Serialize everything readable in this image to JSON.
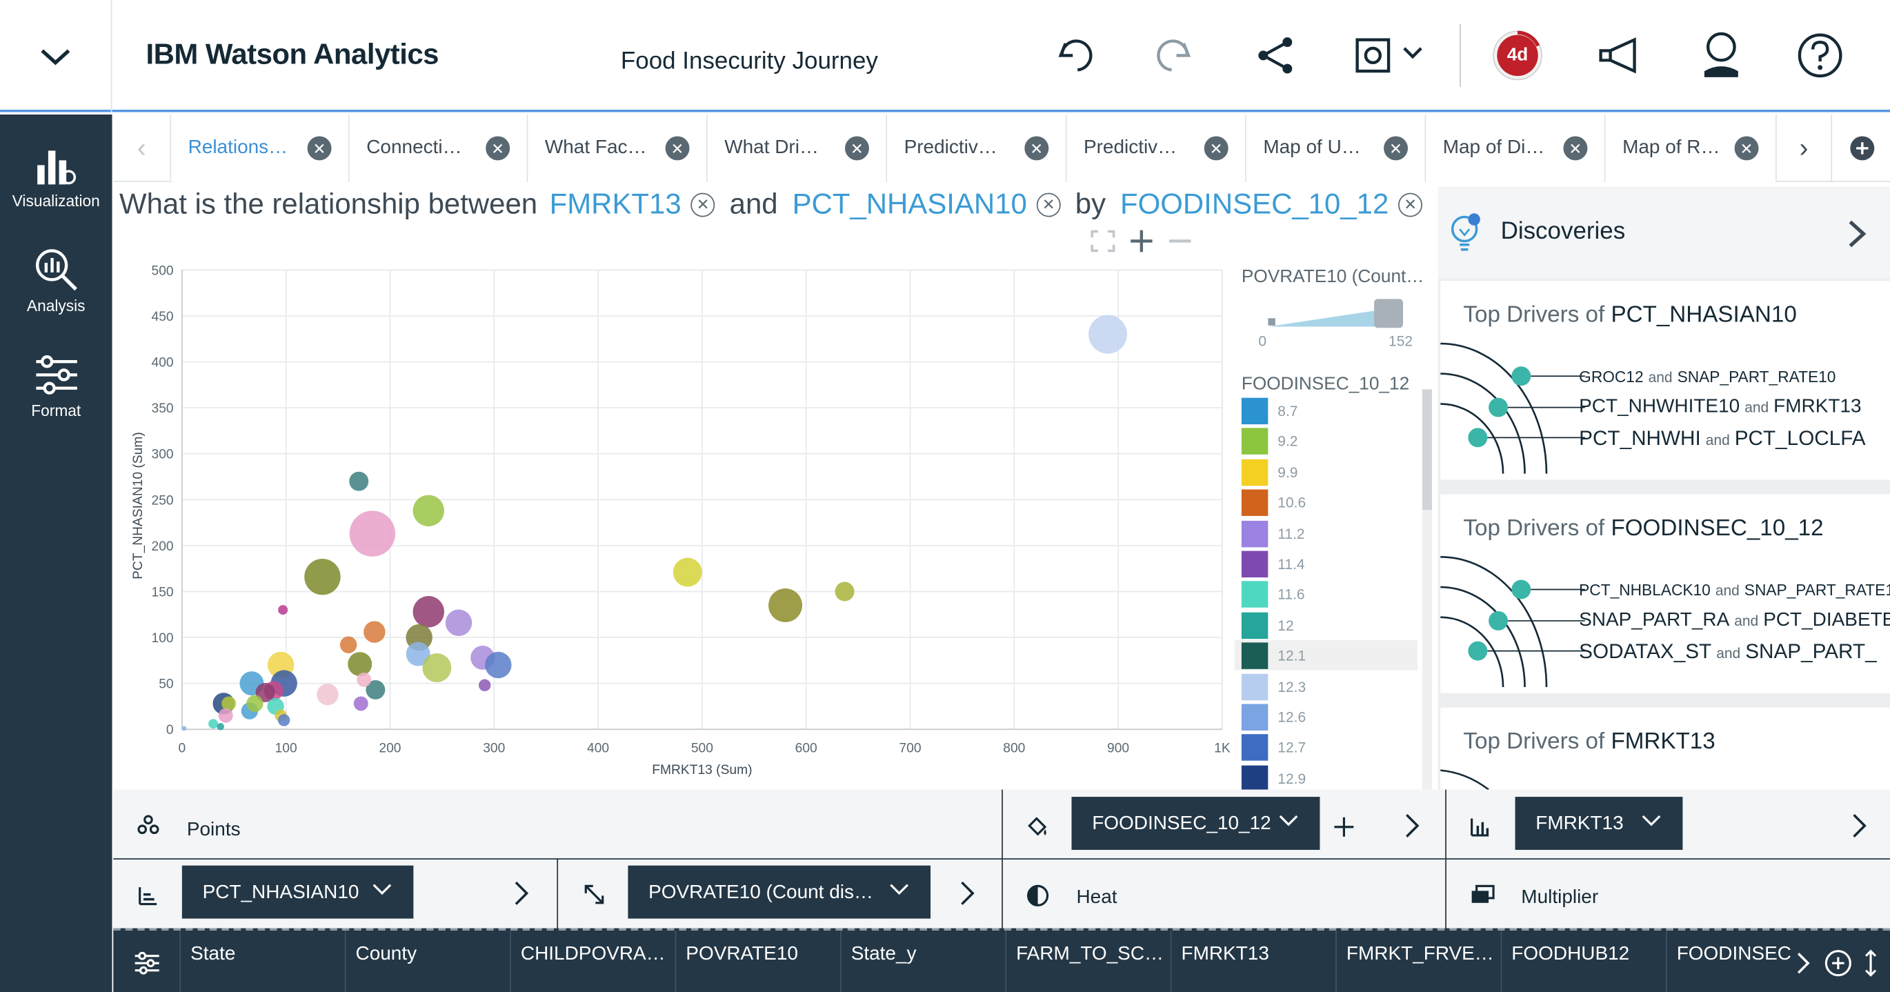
{
  "app": {
    "title": "IBM Watson Analytics",
    "doc_title": "Food Insecurity Journey",
    "badge": "4d"
  },
  "header_icons": [
    "chevron-down-icon",
    "undo-icon",
    "redo-icon",
    "share-icon",
    "screenshot-icon",
    "notification-timer-icon",
    "megaphone-icon",
    "user-icon",
    "help-icon"
  ],
  "leftnav": [
    {
      "label": "Visualization",
      "icon": "visualization-icon"
    },
    {
      "label": "Analysis",
      "icon": "analysis-icon"
    },
    {
      "label": "Format",
      "icon": "format-icon"
    }
  ],
  "tabs": [
    {
      "label": "Relations…",
      "active": true
    },
    {
      "label": "Connecti…"
    },
    {
      "label": "What Fac…"
    },
    {
      "label": "What Dri…"
    },
    {
      "label": "Predictiv…"
    },
    {
      "label": "Predictiv…"
    },
    {
      "label": "Map of U…"
    },
    {
      "label": "Map of Di…"
    },
    {
      "label": "Map of R…"
    }
  ],
  "question": {
    "prefix": "What is the relationship between",
    "field1": "FMRKT13",
    "and": "and",
    "field2": "PCT_NHASIAN10",
    "by": "by",
    "field3": "FOODINSEC_10_12",
    "suffix": "?"
  },
  "chart_data": {
    "type": "scatter",
    "xlabel": "FMRKT13 (Sum)",
    "ylabel": "PCT_NHASIAN10 (Sum)",
    "xlim": [
      0,
      1000
    ],
    "ylim": [
      0,
      500
    ],
    "xticks": [
      "0",
      "100",
      "200",
      "300",
      "400",
      "500",
      "600",
      "700",
      "800",
      "900",
      "1K"
    ],
    "yticks": [
      "0",
      "50",
      "100",
      "150",
      "200",
      "250",
      "300",
      "350",
      "400",
      "450",
      "500"
    ],
    "grid": true,
    "points": [
      {
        "x": 890,
        "y": 430,
        "r": 16,
        "c": "#c2d4f0"
      },
      {
        "x": 170,
        "y": 270,
        "r": 8,
        "c": "#3d7f7f"
      },
      {
        "x": 183,
        "y": 213,
        "r": 19,
        "c": "#e8a0c8"
      },
      {
        "x": 237,
        "y": 238,
        "r": 13,
        "c": "#9bc445"
      },
      {
        "x": 135,
        "y": 166,
        "r": 15,
        "c": "#7e8a2a"
      },
      {
        "x": 97,
        "y": 130,
        "r": 4,
        "c": "#b83b8f"
      },
      {
        "x": 486,
        "y": 171,
        "r": 12,
        "c": "#d4d43a"
      },
      {
        "x": 580,
        "y": 135,
        "r": 14,
        "c": "#8c8c2a"
      },
      {
        "x": 637,
        "y": 150,
        "r": 8,
        "c": "#a8b43a"
      },
      {
        "x": 237,
        "y": 128,
        "r": 13,
        "c": "#8f3a6f"
      },
      {
        "x": 266,
        "y": 116,
        "r": 11,
        "c": "#a98cdb"
      },
      {
        "x": 185,
        "y": 106,
        "r": 9,
        "c": "#d87a3a"
      },
      {
        "x": 160,
        "y": 92,
        "r": 7,
        "c": "#d87a3a"
      },
      {
        "x": 228,
        "y": 100,
        "r": 11,
        "c": "#7e7e3a"
      },
      {
        "x": 227,
        "y": 82,
        "r": 10,
        "c": "#8cb4e8"
      },
      {
        "x": 245,
        "y": 67,
        "r": 12,
        "c": "#b4c85a"
      },
      {
        "x": 171,
        "y": 71,
        "r": 10,
        "c": "#7e8a2a"
      },
      {
        "x": 186,
        "y": 43,
        "r": 8,
        "c": "#3d7f7f"
      },
      {
        "x": 175,
        "y": 54,
        "r": 6,
        "c": "#f0b4c8"
      },
      {
        "x": 289,
        "y": 78,
        "r": 10,
        "c": "#a98cdb"
      },
      {
        "x": 304,
        "y": 70,
        "r": 11,
        "c": "#5a7ec8"
      },
      {
        "x": 291,
        "y": 48,
        "r": 5,
        "c": "#8c5ab4"
      },
      {
        "x": 172,
        "y": 28,
        "r": 6,
        "c": "#a06ed0"
      },
      {
        "x": 95,
        "y": 70,
        "r": 11,
        "c": "#f0d44a"
      },
      {
        "x": 98,
        "y": 50,
        "r": 11,
        "c": "#3a5aa0"
      },
      {
        "x": 67,
        "y": 50,
        "r": 10,
        "c": "#4aa0d4"
      },
      {
        "x": 88,
        "y": 42,
        "r": 8,
        "c": "#c84a8c"
      },
      {
        "x": 80,
        "y": 40,
        "r": 8,
        "c": "#8f3a6f"
      },
      {
        "x": 140,
        "y": 38,
        "r": 9,
        "c": "#f0c4d0"
      },
      {
        "x": 65,
        "y": 20,
        "r": 7,
        "c": "#4aa0d4"
      },
      {
        "x": 70,
        "y": 28,
        "r": 7,
        "c": "#9bc445"
      },
      {
        "x": 90,
        "y": 25,
        "r": 7,
        "c": "#4ad4c0"
      },
      {
        "x": 40,
        "y": 28,
        "r": 9,
        "c": "#2a4a80"
      },
      {
        "x": 45,
        "y": 28,
        "r": 6,
        "c": "#b4c83a"
      },
      {
        "x": 42,
        "y": 15,
        "r": 6,
        "c": "#e8a0c8"
      },
      {
        "x": 95,
        "y": 15,
        "r": 5,
        "c": "#d4c43a"
      },
      {
        "x": 98,
        "y": 10,
        "r": 5,
        "c": "#5a7ec8"
      },
      {
        "x": 30,
        "y": 6,
        "r": 4,
        "c": "#4ad4c0"
      },
      {
        "x": 37,
        "y": 3,
        "r": 3,
        "c": "#2aa09c"
      },
      {
        "x": 2,
        "y": 1,
        "r": 2,
        "c": "#8cb4e8"
      }
    ]
  },
  "legend": {
    "size_title": "POVRATE10 (Count…",
    "size_min": "0",
    "size_max": "152",
    "color_title": "FOODINSEC_10_12",
    "items": [
      {
        "label": "8.7",
        "color": "#2c93d1"
      },
      {
        "label": "9.2",
        "color": "#8cc63f"
      },
      {
        "label": "9.9",
        "color": "#f4d022"
      },
      {
        "label": "10.6",
        "color": "#d0641d"
      },
      {
        "label": "11.2",
        "color": "#9b82e2"
      },
      {
        "label": "11.4",
        "color": "#7f4aaf"
      },
      {
        "label": "11.6",
        "color": "#4fd8c1"
      },
      {
        "label": "12",
        "color": "#26a69a"
      },
      {
        "label": "12.1",
        "color": "#1a5e55"
      },
      {
        "label": "12.3",
        "color": "#b7cdf0"
      },
      {
        "label": "12.6",
        "color": "#7aa4e2"
      },
      {
        "label": "12.7",
        "color": "#3d6cc2"
      },
      {
        "label": "12.9",
        "color": "#1e3f82"
      }
    ]
  },
  "discoveries": {
    "title": "Discoveries",
    "cards": [
      {
        "prefix": "Top Drivers of",
        "target": "PCT_NHASIAN10",
        "rows": [
          {
            "a": "GROC12",
            "and": "and",
            "b": "SNAP_PART_RATE10"
          },
          {
            "a": "PCT_NHWHITE10",
            "and": "and",
            "b": "FMRKT13"
          },
          {
            "a": "PCT_NHWHI",
            "and": "and",
            "b": "PCT_LOCLFA"
          }
        ]
      },
      {
        "prefix": "Top Drivers of",
        "target": "FOODINSEC_10_12",
        "rows": [
          {
            "a": "PCT_NHBLACK10",
            "and": "and",
            "b": "SNAP_PART_RATE1"
          },
          {
            "a": "SNAP_PART_RA",
            "and": "and",
            "b": "PCT_DIABETES"
          },
          {
            "a": "SODATAX_ST",
            "and": "and",
            "b": "SNAP_PART_"
          }
        ]
      },
      {
        "prefix": "Top Drivers of",
        "target": "FMRKT13",
        "rows": []
      }
    ]
  },
  "shelves": {
    "points": "Points",
    "color_field": "FOODINSEC_10_12",
    "multiplier_field": "FMRKT13",
    "y_field": "PCT_NHASIAN10",
    "size_field": "POVRATE10 (Count dis…",
    "heat": "Heat",
    "multiplier": "Multiplier"
  },
  "columns": [
    "State",
    "County",
    "CHILDPOVRA…",
    "POVRATE10",
    "State_y",
    "FARM_TO_SC…",
    "FMRKT13",
    "FMRKT_FRVE…",
    "FOODHUB12",
    "FOODINSEC"
  ]
}
